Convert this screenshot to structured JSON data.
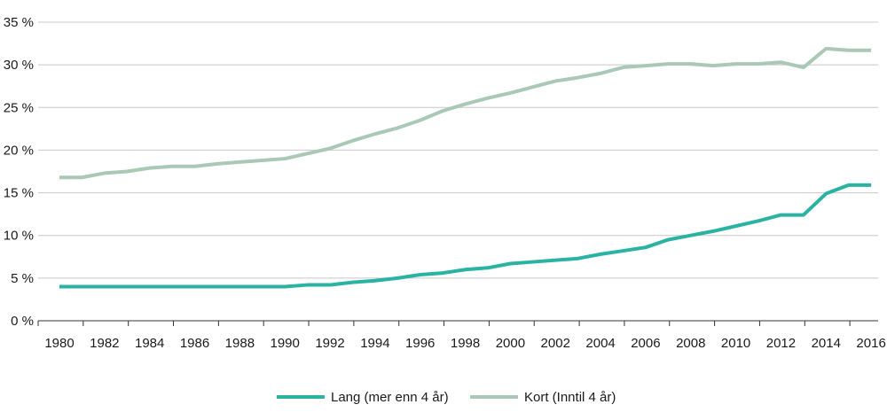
{
  "chart_data": {
    "type": "line",
    "x": [
      1980,
      1981,
      1982,
      1983,
      1984,
      1985,
      1986,
      1987,
      1988,
      1989,
      1990,
      1991,
      1992,
      1993,
      1994,
      1995,
      1996,
      1997,
      1998,
      1999,
      2000,
      2001,
      2002,
      2003,
      2004,
      2005,
      2006,
      2007,
      2008,
      2009,
      2010,
      2011,
      2012,
      2013,
      2014,
      2015,
      2016
    ],
    "x_tick_labels": [
      "1980",
      "1982",
      "1984",
      "1986",
      "1988",
      "1990",
      "1992",
      "1994",
      "1996",
      "1998",
      "2000",
      "2002",
      "2004",
      "2006",
      "2008",
      "2010",
      "2012",
      "2014",
      "2016"
    ],
    "y_tick_labels": [
      "0 %",
      "5 %",
      "10 %",
      "15 %",
      "20 %",
      "25 %",
      "30 %",
      "35 %"
    ],
    "ylim": [
      0,
      35
    ],
    "y_unit": "%",
    "grid": "horizontal",
    "legend_position": "bottom",
    "series": [
      {
        "name": "Lang (mer enn 4 år)",
        "color": "#2ab3a3",
        "values": [
          4.0,
          4.0,
          4.0,
          4.0,
          4.0,
          4.0,
          4.0,
          4.0,
          4.0,
          4.0,
          4.0,
          4.2,
          4.2,
          4.5,
          4.7,
          5.0,
          5.4,
          5.6,
          6.0,
          6.2,
          6.7,
          6.9,
          7.1,
          7.3,
          7.8,
          8.2,
          8.6,
          9.5,
          10.0,
          10.5,
          11.1,
          11.7,
          12.4,
          12.4,
          14.9,
          15.9,
          15.9
        ]
      },
      {
        "name": "Kort (Inntil 4 år)",
        "color": "#a9c8b5",
        "values": [
          16.8,
          16.8,
          17.3,
          17.5,
          17.9,
          18.1,
          18.1,
          18.4,
          18.6,
          18.8,
          19.0,
          19.6,
          20.2,
          21.1,
          21.9,
          22.6,
          23.5,
          24.6,
          25.4,
          26.1,
          26.7,
          27.4,
          28.1,
          28.5,
          29.0,
          29.7,
          29.9,
          30.1,
          30.1,
          29.9,
          30.1,
          30.1,
          30.3,
          29.7,
          31.9,
          31.7,
          31.7
        ]
      }
    ]
  }
}
